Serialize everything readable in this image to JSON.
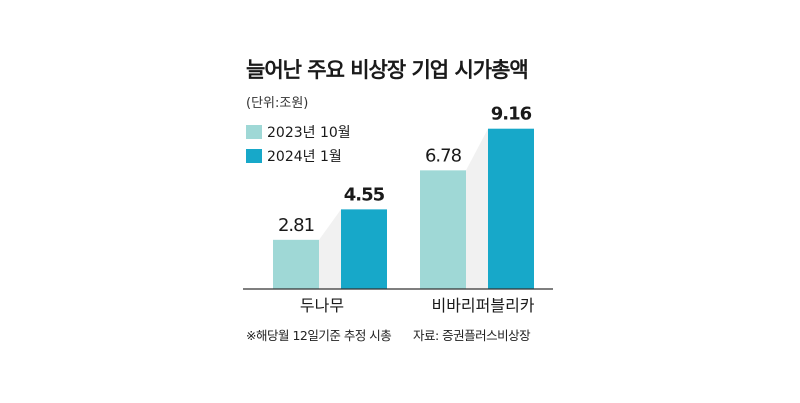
{
  "chart_data": {
    "type": "bar",
    "title": "늘어난 주요 비상장 기업 시가총액",
    "unit_label": "(단위:조원)",
    "categories": [
      "두나무",
      "비바리퍼블리카"
    ],
    "series": [
      {
        "name": "2023년 10월",
        "color": "#9fd8d6",
        "values": [
          2.81,
          6.78
        ]
      },
      {
        "name": "2024년 1월",
        "color": "#17a8c9",
        "values": [
          4.55,
          9.16
        ]
      }
    ],
    "value_labels": [
      "2.81",
      "4.55",
      "6.78",
      "9.16"
    ],
    "ylim": [
      0,
      10
    ],
    "legend_position": "top-left",
    "grid": false
  },
  "footnote_left": "※해당월 12일기준 추정 시총",
  "footnote_right": "자료: 증권플러스비상장"
}
